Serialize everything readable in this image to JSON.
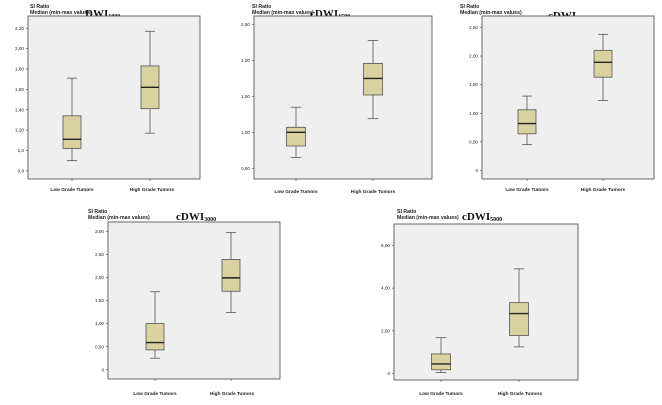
{
  "chart_data": [
    {
      "type": "boxplot",
      "ylabel_line1": "SI Ratio",
      "ylabel_line2": "Median (min-max values)",
      "title_main": "DWI",
      "title_sub": "1000",
      "categories": [
        "Low Grade Tumors",
        "High  Grade Tumors"
      ],
      "yticks": [
        0.8,
        1.0,
        1.2,
        1.4,
        1.6,
        1.8,
        2.0,
        2.2
      ],
      "ytick_labels": [
        "0,8",
        "1,0",
        "1,20",
        "1,40",
        "1,60",
        "1,80",
        "2,00",
        "2,20"
      ],
      "ylim": [
        0.72,
        2.32
      ],
      "boxes": [
        {
          "min": 0.9,
          "q1": 1.02,
          "median": 1.11,
          "q3": 1.34,
          "max": 1.71
        },
        {
          "min": 1.17,
          "q1": 1.41,
          "median": 1.62,
          "q3": 1.83,
          "max": 2.17
        }
      ]
    },
    {
      "type": "boxplot",
      "ylabel_line1": "SI Ratio",
      "ylabel_line2": "Median (min-max values)",
      "title_main": "cDWI",
      "title_sub": "1500",
      "categories": [
        "Low Grade Tumors",
        "High  Grade Tumors"
      ],
      "yticks": [
        0.5,
        1.0,
        1.5,
        2.0,
        2.5
      ],
      "ytick_labels": [
        "0,50",
        "1,00",
        "1,50",
        "2,00",
        "2,50"
      ],
      "ylim": [
        0.35,
        2.62
      ],
      "boxes": [
        {
          "min": 0.65,
          "q1": 0.81,
          "median": 1.0,
          "q3": 1.07,
          "max": 1.35
        },
        {
          "min": 1.19,
          "q1": 1.52,
          "median": 1.75,
          "q3": 1.96,
          "max": 2.28
        }
      ]
    },
    {
      "type": "boxplot",
      "ylabel_line1": "SI Ratio",
      "ylabel_line2": "Median (min-max values)",
      "title_main": "cDWI",
      "title_sub": "2000",
      "categories": [
        "Low Grade Tumors",
        "High  Grade Tumors"
      ],
      "yticks": [
        0,
        0.5,
        1.0,
        1.5,
        2.0,
        2.5
      ],
      "ytick_labels": [
        "0",
        "0,50",
        "1,00",
        "1,50",
        "2,00",
        "2,50"
      ],
      "ylim": [
        -0.15,
        2.7
      ],
      "boxes": [
        {
          "min": 0.45,
          "q1": 0.64,
          "median": 0.82,
          "q3": 1.06,
          "max": 1.3
        },
        {
          "min": 1.22,
          "q1": 1.63,
          "median": 1.89,
          "q3": 2.1,
          "max": 2.38
        }
      ]
    },
    {
      "type": "boxplot",
      "ylabel_line1": "SI Ratio",
      "ylabel_line2": "Median (min-max values)",
      "title_main": "cDWI",
      "title_sub": "3000",
      "categories": [
        "Low Grade Tumors",
        "High  Grade Tumors"
      ],
      "yticks": [
        0,
        0.5,
        1.0,
        1.5,
        2.0,
        2.5,
        3.0
      ],
      "ytick_labels": [
        "0",
        "0,50",
        "1,00",
        "1,50",
        "2,00",
        "2,50",
        "3,00"
      ],
      "ylim": [
        -0.2,
        3.2
      ],
      "boxes": [
        {
          "min": 0.25,
          "q1": 0.43,
          "median": 0.59,
          "q3": 1.0,
          "max": 1.69
        },
        {
          "min": 1.24,
          "q1": 1.7,
          "median": 1.99,
          "q3": 2.39,
          "max": 2.97
        }
      ]
    },
    {
      "type": "boxplot",
      "ylabel_line1": "SI Ratio",
      "ylabel_line2": "Median (min-max values)",
      "title_main": "cDWI",
      "title_sub": "5000",
      "categories": [
        "Low Grade Tumors",
        "High  Grade Tumors"
      ],
      "yticks": [
        0,
        2.0,
        4.0,
        6.0
      ],
      "ytick_labels": [
        "0",
        "2,00",
        "4,00",
        "6,00"
      ],
      "ylim": [
        -0.3,
        7.0
      ],
      "boxes": [
        {
          "min": 0.05,
          "q1": 0.18,
          "median": 0.45,
          "q3": 0.92,
          "max": 1.68
        },
        {
          "min": 1.25,
          "q1": 1.78,
          "median": 2.81,
          "q3": 3.32,
          "max": 4.9
        }
      ]
    }
  ],
  "colors": {
    "plot_bg": "#efefef",
    "box_fill": "#d9d1a0",
    "box_stroke": "#555555",
    "frame": "#444444",
    "text": "#222222"
  }
}
